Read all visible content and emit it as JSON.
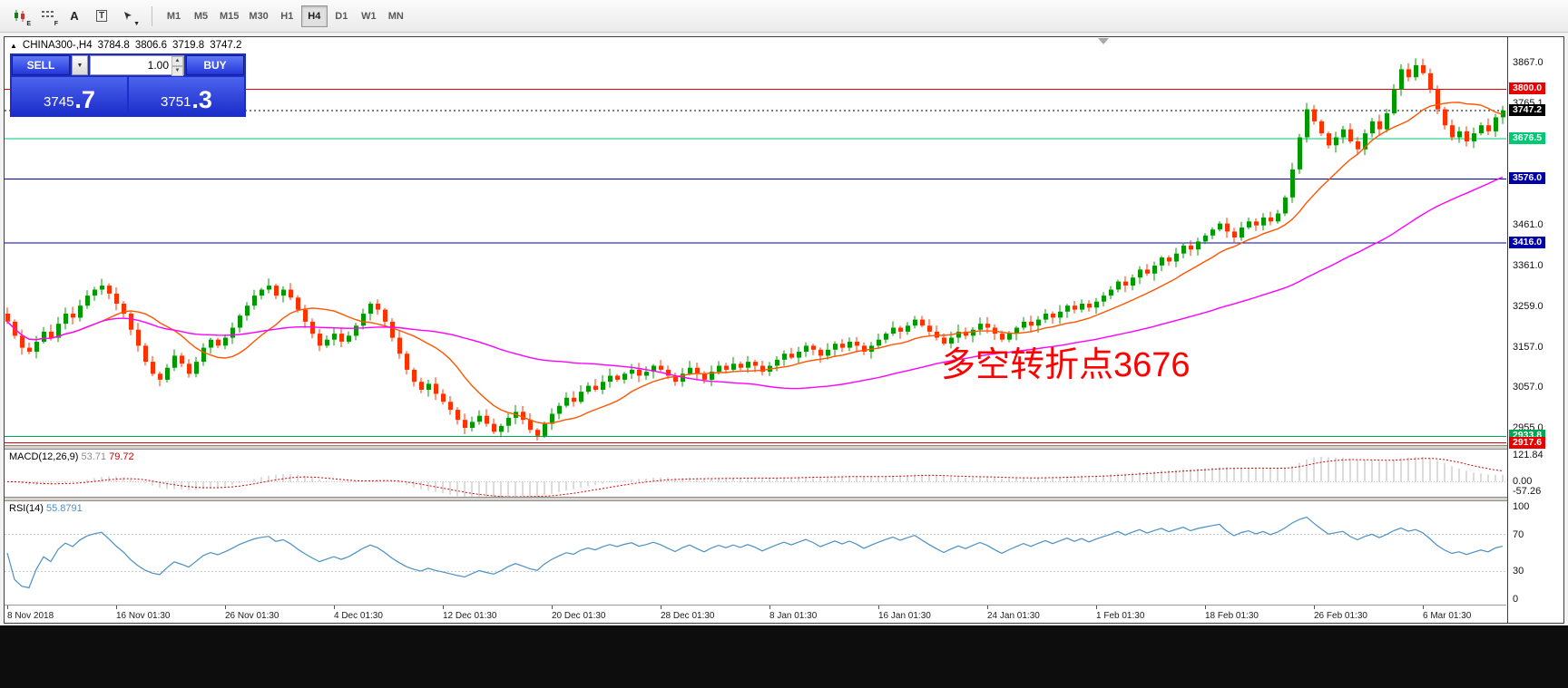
{
  "toolbar": {
    "icons": [
      {
        "name": "candlestick-chart-icon",
        "sub": "E"
      },
      {
        "name": "indicator-grid-icon",
        "sub": "F"
      },
      {
        "name": "text-tool-icon",
        "glyph": "A"
      },
      {
        "name": "text-label-tool-icon",
        "glyph": "T"
      },
      {
        "name": "shapes-tool-icon",
        "glyph": "▼"
      }
    ],
    "timeframes": [
      {
        "label": "M1",
        "active": false
      },
      {
        "label": "M5",
        "active": false
      },
      {
        "label": "M15",
        "active": false
      },
      {
        "label": "M30",
        "active": false
      },
      {
        "label": "H1",
        "active": false
      },
      {
        "label": "H4",
        "active": true
      },
      {
        "label": "D1",
        "active": false
      },
      {
        "label": "W1",
        "active": false
      },
      {
        "label": "MN",
        "active": false
      }
    ]
  },
  "chart": {
    "symbol_title": "CHINA300-,H4",
    "open": "3784.8",
    "high": "3806.6",
    "low": "3719.8",
    "close": "3747.2",
    "annotation": "多空转折点3676",
    "annotation_color": "#fd0000"
  },
  "trade_panel": {
    "sell_label": "SELL",
    "buy_label": "BUY",
    "volume": "1.00",
    "bid_prefix": "3745",
    "bid_big": ".7",
    "ask_prefix": "3751",
    "ask_big": ".3"
  },
  "chart_data": {
    "type": "candlestick",
    "symbol": "CHINA300-",
    "timeframe": "H4",
    "up_color": "#009a00",
    "down_color": "#fe3200",
    "price_range": [
      2912,
      3930
    ],
    "price_axis_ticks": [
      3867.0,
      3765.1,
      3461.0,
      3361.0,
      3259.0,
      3157.0,
      3057.0,
      2955.0
    ],
    "hlines": [
      {
        "price": 3800.0,
        "label": "3800.0",
        "color": "#e60000",
        "style": "solid"
      },
      {
        "price": 3747.2,
        "label": "3747.2",
        "color": "#000000",
        "style": "dashed"
      },
      {
        "price": 3676.5,
        "label": "3676.5",
        "color": "#00c873",
        "style": "solid"
      },
      {
        "price": 3576.0,
        "label": "3576.0",
        "color": "#0000a8",
        "style": "solid"
      },
      {
        "price": 3416.0,
        "label": "3416.0",
        "color": "#0000a8",
        "style": "solid"
      },
      {
        "price": 2933.8,
        "label": "2933.8",
        "color": "#00a651",
        "style": "solid"
      },
      {
        "price": 2917.6,
        "label": "2917.6",
        "color": "#e60000",
        "style": "solid"
      }
    ],
    "x_labels": [
      {
        "text": "8 Nov 2018",
        "bar": 0
      },
      {
        "text": "16 Nov 01:30",
        "bar": 15
      },
      {
        "text": "26 Nov 01:30",
        "bar": 30
      },
      {
        "text": "4 Dec 01:30",
        "bar": 45
      },
      {
        "text": "12 Dec 01:30",
        "bar": 60
      },
      {
        "text": "20 Dec 01:30",
        "bar": 75
      },
      {
        "text": "28 Dec 01:30",
        "bar": 90
      },
      {
        "text": "8 Jan 01:30",
        "bar": 105
      },
      {
        "text": "16 Jan 01:30",
        "bar": 120
      },
      {
        "text": "24 Jan 01:30",
        "bar": 135
      },
      {
        "text": "1 Feb 01:30",
        "bar": 150
      },
      {
        "text": "18 Feb 01:30",
        "bar": 165
      },
      {
        "text": "26 Feb 01:30",
        "bar": 180
      },
      {
        "text": "6 Mar 01:30",
        "bar": 195
      }
    ],
    "shift_marker_bar": 151,
    "closes": [
      3220,
      3185,
      3155,
      3145,
      3170,
      3195,
      3180,
      3215,
      3240,
      3230,
      3260,
      3285,
      3300,
      3310,
      3290,
      3265,
      3240,
      3200,
      3160,
      3120,
      3090,
      3075,
      3105,
      3135,
      3115,
      3090,
      3120,
      3155,
      3175,
      3160,
      3180,
      3205,
      3235,
      3260,
      3285,
      3300,
      3310,
      3285,
      3300,
      3280,
      3250,
      3220,
      3190,
      3160,
      3175,
      3190,
      3170,
      3185,
      3210,
      3240,
      3265,
      3250,
      3220,
      3180,
      3140,
      3100,
      3070,
      3050,
      3065,
      3040,
      3020,
      3000,
      2975,
      2955,
      2970,
      2985,
      2965,
      2945,
      2960,
      2980,
      2995,
      2975,
      2950,
      2935,
      2965,
      2990,
      3010,
      3030,
      3020,
      3045,
      3060,
      3050,
      3070,
      3085,
      3075,
      3090,
      3100,
      3085,
      3095,
      3110,
      3100,
      3085,
      3070,
      3090,
      3105,
      3090,
      3075,
      3095,
      3110,
      3100,
      3115,
      3105,
      3120,
      3110,
      3095,
      3110,
      3125,
      3140,
      3130,
      3145,
      3160,
      3150,
      3135,
      3150,
      3165,
      3155,
      3170,
      3160,
      3145,
      3160,
      3175,
      3190,
      3205,
      3195,
      3210,
      3225,
      3210,
      3195,
      3180,
      3165,
      3180,
      3195,
      3185,
      3200,
      3215,
      3205,
      3190,
      3175,
      3190,
      3205,
      3220,
      3210,
      3225,
      3240,
      3230,
      3245,
      3260,
      3250,
      3265,
      3255,
      3270,
      3285,
      3300,
      3320,
      3310,
      3330,
      3350,
      3340,
      3360,
      3380,
      3370,
      3390,
      3410,
      3400,
      3420,
      3435,
      3450,
      3465,
      3445,
      3430,
      3455,
      3470,
      3460,
      3480,
      3470,
      3490,
      3530,
      3600,
      3680,
      3750,
      3720,
      3690,
      3660,
      3680,
      3700,
      3670,
      3650,
      3690,
      3720,
      3700,
      3740,
      3800,
      3850,
      3830,
      3860,
      3840,
      3800,
      3750,
      3710,
      3680,
      3695,
      3670,
      3690,
      3710,
      3695,
      3730,
      3747.2
    ],
    "ma_fast": {
      "period": 13,
      "color": "#ff5500"
    },
    "ma_slow": {
      "period": 55,
      "color": "#ff00ff"
    },
    "macd": {
      "label": "MACD(12,26,9)",
      "main_value": "53.71",
      "signal_value": "79.72",
      "axis_ticks": [
        121.84,
        0.0,
        -57.26
      ],
      "range": [
        -57.26,
        121.84
      ],
      "histogram_color": "#b8b8b8",
      "signal_color": "#dd0000"
    },
    "rsi": {
      "label": "RSI(14)",
      "value": "55.8791",
      "axis_ticks": [
        100,
        70,
        30,
        0
      ],
      "levels": [
        30,
        70
      ],
      "line_color": "#4a90c4"
    }
  }
}
